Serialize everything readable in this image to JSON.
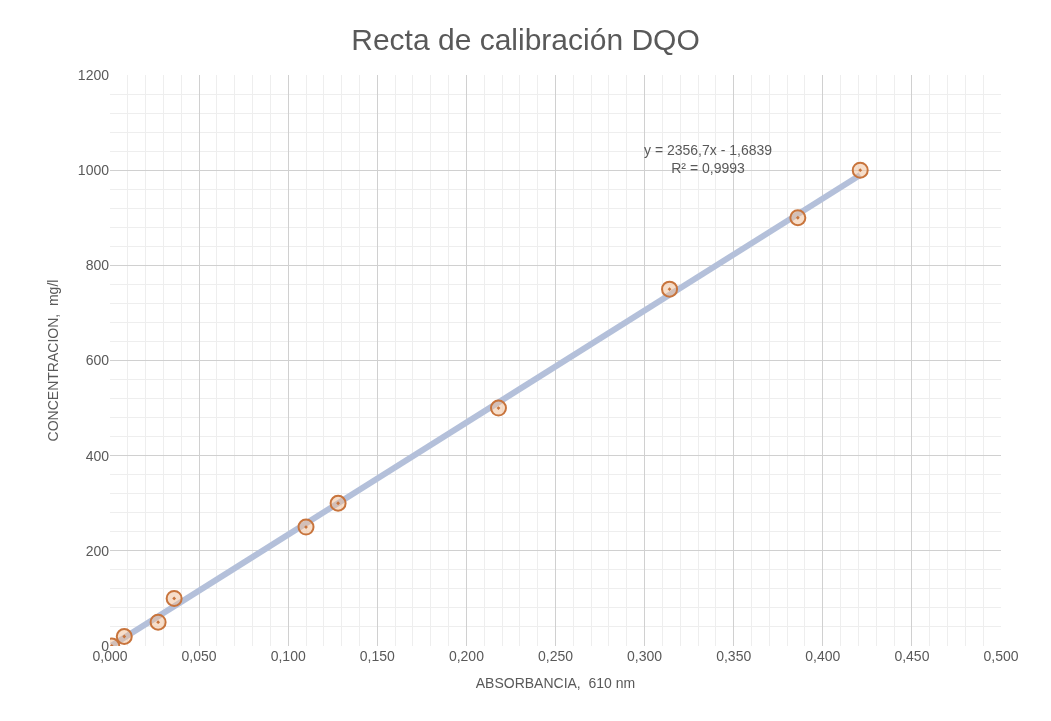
{
  "chart_data": {
    "type": "scatter",
    "title": "Recta de calibración DQO",
    "xlabel": "ABSORBANCIA,  610 nm",
    "ylabel": "CONCENTRACION,  mg/l",
    "series": [
      {
        "type": "line",
        "color": "#b4c0da",
        "x": [
          0.001,
          0.421
        ],
        "values": [
          1,
          990
        ],
        "marker": "none"
      },
      {
        "color": "#c8743c",
        "x": [
          0.001,
          0.008,
          0.027,
          0.036,
          0.11,
          0.128,
          0.218,
          0.314,
          0.386,
          0.421
        ],
        "values": [
          0,
          20,
          50,
          100,
          250,
          300,
          500,
          750,
          900,
          1000
        ],
        "marker": "circle"
      }
    ],
    "annotations": [
      "y = 2356,7x - 1,6839\nR² = 0,9993"
    ],
    "xlim": [
      0,
      0.5
    ],
    "xticks": [
      {
        "value": 0,
        "label": "0,000"
      },
      {
        "value": 0.05,
        "label": "0,050"
      },
      {
        "value": 0.1,
        "label": "0,100"
      },
      {
        "value": 0.15,
        "label": "0,150"
      },
      {
        "value": 0.2,
        "label": "0,200"
      },
      {
        "value": 0.25,
        "label": "0,250"
      },
      {
        "value": 0.3,
        "label": "0,300"
      },
      {
        "value": 0.35,
        "label": "0,350"
      },
      {
        "value": 0.4,
        "label": "0,400"
      },
      {
        "value": 0.45,
        "label": "0,450"
      },
      {
        "value": 0.5,
        "label": "0,500"
      }
    ],
    "ylim": [
      0,
      1200
    ],
    "yticks": [
      0,
      200,
      400,
      600,
      800,
      1000,
      1200
    ],
    "grid": true
  }
}
